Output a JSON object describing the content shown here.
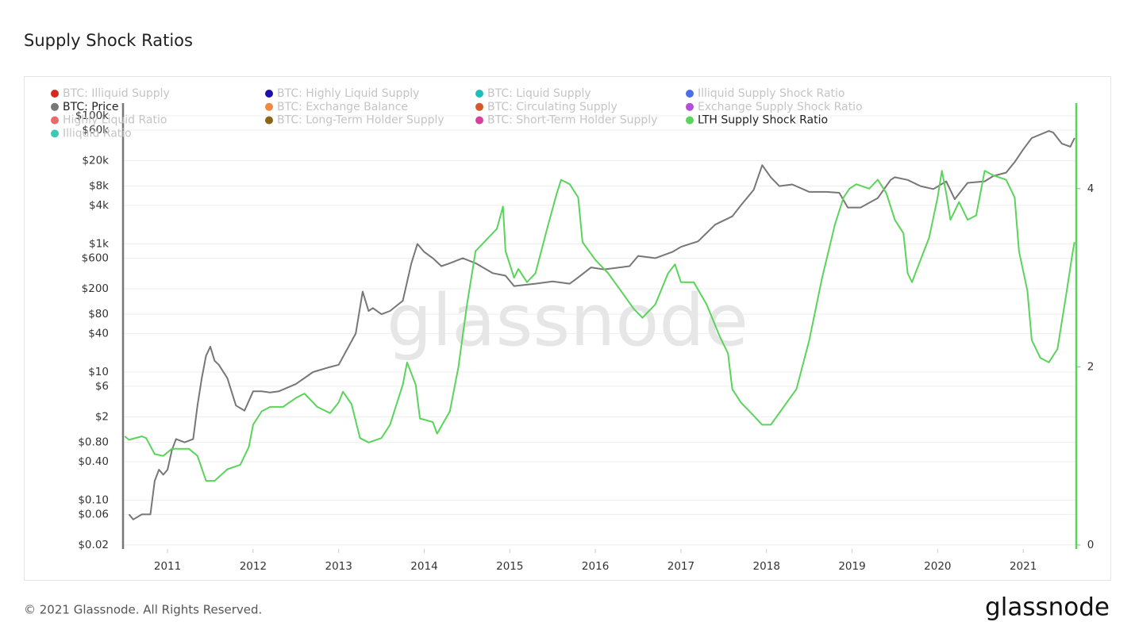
{
  "chart_data": {
    "type": "line",
    "title": "Supply Shock Ratios",
    "watermark": "glassnode",
    "series": [
      {
        "name": "BTC: Illiquid Supply",
        "color": "#d42a1c",
        "visible": false
      },
      {
        "name": "BTC: Highly Liquid Supply",
        "color": "#1a0fa8",
        "visible": false
      },
      {
        "name": "BTC: Liquid Supply",
        "color": "#1ebdbd",
        "visible": false
      },
      {
        "name": "Illiquid Supply Shock Ratio",
        "color": "#4a6ee8",
        "visible": false
      },
      {
        "name": "BTC: Price",
        "color": "#777777",
        "visible": true,
        "axis": "y",
        "x": [
          2010.55,
          2010.6,
          2010.7,
          2010.8,
          2010.85,
          2010.9,
          2010.95,
          2011.0,
          2011.05,
          2011.1,
          2011.2,
          2011.3,
          2011.35,
          2011.4,
          2011.45,
          2011.5,
          2011.55,
          2011.6,
          2011.7,
          2011.8,
          2011.9,
          2012.0,
          2012.1,
          2012.2,
          2012.3,
          2012.5,
          2012.7,
          2012.9,
          2013.0,
          2013.2,
          2013.28,
          2013.35,
          2013.4,
          2013.5,
          2013.6,
          2013.75,
          2013.85,
          2013.92,
          2014.0,
          2014.1,
          2014.2,
          2014.3,
          2014.45,
          2014.6,
          2014.8,
          2014.95,
          2015.05,
          2015.3,
          2015.5,
          2015.7,
          2015.8,
          2015.95,
          2016.1,
          2016.4,
          2016.5,
          2016.7,
          2016.9,
          2017.0,
          2017.2,
          2017.4,
          2017.6,
          2017.7,
          2017.85,
          2017.95,
          2018.05,
          2018.15,
          2018.3,
          2018.5,
          2018.7,
          2018.85,
          2018.95,
          2019.1,
          2019.3,
          2019.45,
          2019.5,
          2019.65,
          2019.8,
          2019.95,
          2020.1,
          2020.2,
          2020.35,
          2020.55,
          2020.65,
          2020.8,
          2020.9,
          2021.0,
          2021.1,
          2021.3,
          2021.35,
          2021.45,
          2021.55,
          2021.6
        ],
        "values": [
          0.06,
          0.05,
          0.06,
          0.06,
          0.2,
          0.3,
          0.25,
          0.3,
          0.6,
          0.9,
          0.8,
          0.9,
          3,
          8,
          18,
          25,
          15,
          13,
          8,
          3,
          2.5,
          5,
          5,
          4.8,
          5,
          6.5,
          10,
          12,
          13,
          40,
          180,
          90,
          100,
          80,
          90,
          130,
          500,
          1000,
          750,
          600,
          450,
          500,
          600,
          500,
          350,
          320,
          220,
          240,
          260,
          240,
          300,
          430,
          400,
          450,
          650,
          600,
          750,
          900,
          1100,
          2000,
          2700,
          4000,
          7000,
          17000,
          11000,
          8000,
          8500,
          6500,
          6500,
          6300,
          3700,
          3700,
          5200,
          10000,
          11000,
          10000,
          8000,
          7200,
          9500,
          5000,
          9000,
          9500,
          11500,
          13000,
          19000,
          30000,
          45000,
          58000,
          55000,
          37000,
          33000,
          45000
        ]
      },
      {
        "name": "BTC: Exchange Balance",
        "color": "#f08a3c",
        "visible": false
      },
      {
        "name": "BTC: Circulating Supply",
        "color": "#d9552a",
        "visible": false
      },
      {
        "name": "Exchange Supply Shock Ratio",
        "color": "#b44ed8",
        "visible": false
      },
      {
        "name": "Highly Liquid Ratio",
        "color": "#e86a6a",
        "visible": false
      },
      {
        "name": "BTC: Long-Term Holder Supply",
        "color": "#8c6415",
        "visible": false
      },
      {
        "name": "BTC: Short-Term Holder Supply",
        "color": "#d6409b",
        "visible": false
      },
      {
        "name": "LTH Supply Shock Ratio",
        "color": "#5ad45a",
        "visible": true,
        "axis": "y2",
        "x": [
          2010.5,
          2010.55,
          2010.7,
          2010.75,
          2010.85,
          2010.95,
          2011.05,
          2011.25,
          2011.35,
          2011.45,
          2011.55,
          2011.7,
          2011.85,
          2011.95,
          2012.0,
          2012.1,
          2012.2,
          2012.35,
          2012.5,
          2012.6,
          2012.75,
          2012.9,
          2013.0,
          2013.05,
          2013.15,
          2013.25,
          2013.35,
          2013.5,
          2013.6,
          2013.75,
          2013.8,
          2013.9,
          2013.95,
          2014.1,
          2014.15,
          2014.3,
          2014.4,
          2014.5,
          2014.6,
          2014.7,
          2014.85,
          2014.92,
          2014.95,
          2015.05,
          2015.1,
          2015.2,
          2015.3,
          2015.45,
          2015.55,
          2015.6,
          2015.7,
          2015.8,
          2015.85,
          2016.0,
          2016.15,
          2016.3,
          2016.45,
          2016.55,
          2016.7,
          2016.85,
          2016.93,
          2017.0,
          2017.15,
          2017.3,
          2017.45,
          2017.55,
          2017.6,
          2017.7,
          2017.85,
          2017.95,
          2018.05,
          2018.2,
          2018.35,
          2018.5,
          2018.65,
          2018.8,
          2018.9,
          2018.97,
          2019.05,
          2019.2,
          2019.3,
          2019.4,
          2019.5,
          2019.6,
          2019.65,
          2019.7,
          2019.8,
          2019.9,
          2020.0,
          2020.05,
          2020.1,
          2020.15,
          2020.25,
          2020.35,
          2020.45,
          2020.55,
          2020.65,
          2020.8,
          2020.9,
          2020.95,
          2021.05,
          2021.1,
          2021.2,
          2021.3,
          2021.4,
          2021.5,
          2021.58,
          2021.6
        ],
        "values": [
          1.22,
          1.18,
          1.22,
          1.2,
          1.02,
          1.0,
          1.08,
          1.08,
          1.0,
          0.72,
          0.72,
          0.85,
          0.9,
          1.1,
          1.35,
          1.5,
          1.55,
          1.55,
          1.65,
          1.7,
          1.55,
          1.48,
          1.6,
          1.72,
          1.58,
          1.2,
          1.15,
          1.2,
          1.35,
          1.8,
          2.05,
          1.8,
          1.42,
          1.38,
          1.25,
          1.5,
          2.0,
          2.7,
          3.3,
          3.4,
          3.55,
          3.8,
          3.3,
          3.0,
          3.1,
          2.95,
          3.05,
          3.6,
          3.95,
          4.1,
          4.05,
          3.9,
          3.4,
          3.2,
          3.05,
          2.85,
          2.65,
          2.55,
          2.7,
          3.05,
          3.15,
          2.95,
          2.95,
          2.7,
          2.35,
          2.15,
          1.75,
          1.6,
          1.45,
          1.35,
          1.35,
          1.55,
          1.75,
          2.3,
          3.0,
          3.6,
          3.9,
          4.0,
          4.05,
          4.0,
          4.1,
          3.95,
          3.65,
          3.5,
          3.05,
          2.95,
          3.2,
          3.45,
          3.9,
          4.2,
          3.95,
          3.65,
          3.85,
          3.65,
          3.7,
          4.2,
          4.15,
          4.1,
          3.9,
          3.3,
          2.85,
          2.3,
          2.1,
          2.05,
          2.2,
          2.8,
          3.3,
          3.4
        ]
      },
      {
        "name": "Illiquid Ratio",
        "color": "#3cc8b4",
        "visible": false
      }
    ],
    "xlim": [
      2010.48,
      2021.62
    ],
    "xticks": [
      2011,
      2012,
      2013,
      2014,
      2015,
      2016,
      2017,
      2018,
      2019,
      2020,
      2021
    ],
    "ylog": true,
    "ylim": [
      0.0173,
      158000
    ],
    "yticks": [
      {
        "value": 0.02,
        "label": "$0.02"
      },
      {
        "value": 0.06,
        "label": "$0.06"
      },
      {
        "value": 0.1,
        "label": "$0.10"
      },
      {
        "value": 0.4,
        "label": "$0.40"
      },
      {
        "value": 0.8,
        "label": "$0.80"
      },
      {
        "value": 2,
        "label": "$2"
      },
      {
        "value": 6,
        "label": "$6"
      },
      {
        "value": 10,
        "label": "$10"
      },
      {
        "value": 40,
        "label": "$40"
      },
      {
        "value": 80,
        "label": "$80"
      },
      {
        "value": 200,
        "label": "$200"
      },
      {
        "value": 600,
        "label": "$600"
      },
      {
        "value": 1000,
        "label": "$1k"
      },
      {
        "value": 4000,
        "label": "$4k"
      },
      {
        "value": 8000,
        "label": "$8k"
      },
      {
        "value": 20000,
        "label": "$20k"
      },
      {
        "value": 60000,
        "label": "$60k"
      },
      {
        "value": 100000,
        "label": "$100k"
      }
    ],
    "y2lim": [
      -0.045,
      4.96
    ],
    "y2ticks": [
      0,
      2,
      4
    ],
    "grid": true
  },
  "footer": {
    "copyright": "© 2021 Glassnode. All Rights Reserved.",
    "logo": "glassnode"
  }
}
